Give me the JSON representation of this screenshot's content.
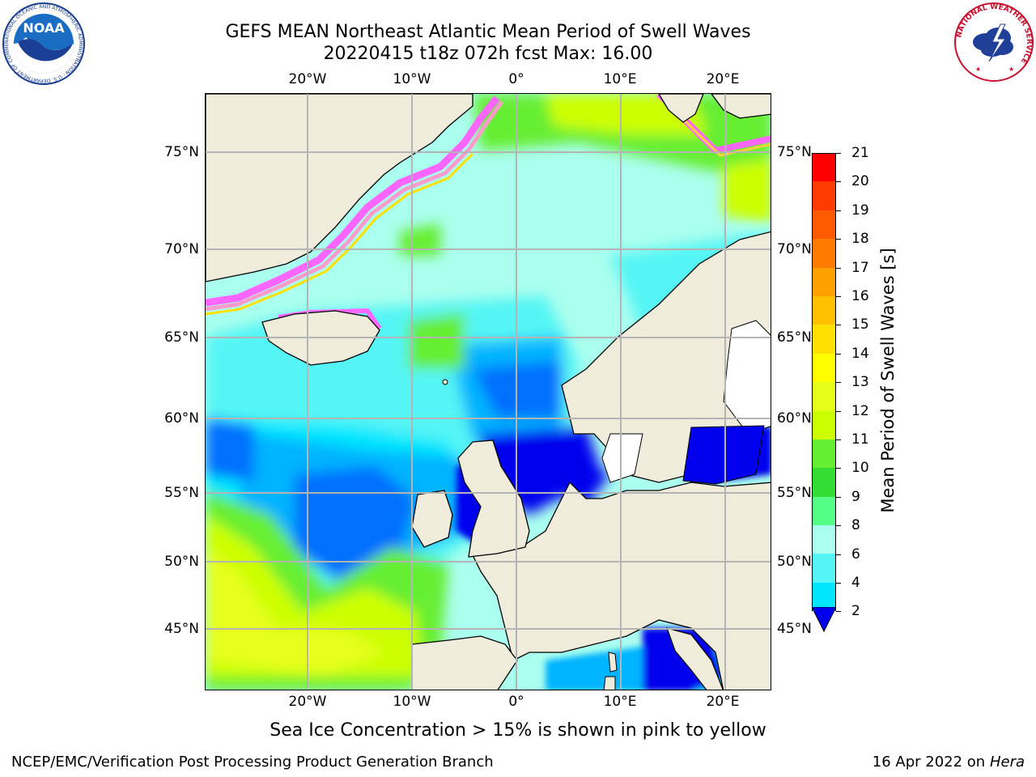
{
  "title": {
    "line1": "GEFS MEAN Northeast Atlantic Mean Period of Swell Waves",
    "line2": "20220415 t18z 072h fcst   Max: 16.00"
  },
  "map": {
    "lon_labels": [
      "20°W",
      "10°W",
      "0°",
      "10°E",
      "20°E"
    ],
    "lat_labels": [
      "75°N",
      "70°N",
      "65°N",
      "60°N",
      "55°N",
      "50°N",
      "45°N"
    ],
    "colors": {
      "land": "#efecdc",
      "ice": "#ff66ff",
      "grid": "#b4b4b4"
    }
  },
  "colorbar": {
    "label": "Mean Period of Swell Waves [s]",
    "ticks": [
      "21",
      "20",
      "19",
      "18",
      "17",
      "16",
      "15",
      "14",
      "13",
      "12",
      "11",
      "10",
      "9",
      "8",
      "6",
      "4",
      "2"
    ],
    "colors": [
      "#ff0000",
      "#ff3a00",
      "#ff5a00",
      "#ff7b00",
      "#ffa000",
      "#ffc000",
      "#ffe000",
      "#ffff00",
      "#e6ff1a",
      "#ccff00",
      "#66ee33",
      "#33dd33",
      "#55ff88",
      "#aaffee",
      "#55f5f5",
      "#00e6ff",
      "#00b4ff",
      "#0070ff"
    ],
    "underflow_color": "#0000ee"
  },
  "note": "Sea Ice Concentration > 15% is shown in pink to yellow",
  "footer": {
    "left": "NCEP/EMC/Verification Post Processing Product Generation Branch",
    "right_prefix": "16 Apr 2022 on ",
    "right_host": "Hera"
  },
  "logos": {
    "left": "NOAA",
    "left_ring": "NATIONAL OCEANIC AND ATMOSPHERIC ADMINISTRATION · U.S. DEPARTMENT OF COMMERCE",
    "right_ring": "NATIONAL WEATHER SERVICE"
  }
}
